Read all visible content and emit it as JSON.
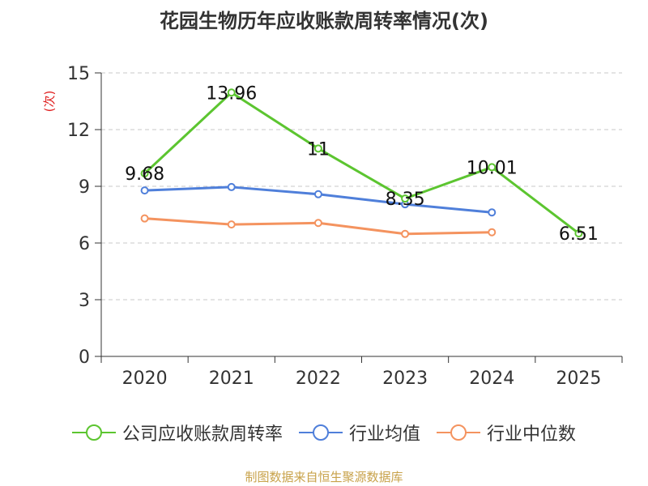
{
  "chart_data": {
    "type": "line",
    "title": "花园生物历年应收账款周转率情况(次)",
    "ylabel": "(次)",
    "xlabel": "",
    "categories": [
      "2020",
      "2021",
      "2022",
      "2023",
      "2024",
      "2025"
    ],
    "ylim": [
      0,
      15
    ],
    "yticks": [
      "0",
      "3",
      "6",
      "9",
      "12",
      "15"
    ],
    "grid": true,
    "legend_position": "bottom",
    "series": [
      {
        "name": "公司应收账款周转率",
        "color": "#5cc530",
        "values": [
          9.68,
          13.96,
          11,
          8.35,
          10.01,
          6.51
        ],
        "labels": [
          "9.68",
          "13.96",
          "11",
          "8.35",
          "10.01",
          "6.51"
        ]
      },
      {
        "name": "行业均值",
        "color": "#4f7fda",
        "values": [
          8.78,
          8.96,
          8.58,
          8.05,
          7.62,
          null
        ]
      },
      {
        "name": "行业中位数",
        "color": "#f4935f",
        "values": [
          7.3,
          6.98,
          7.06,
          6.48,
          6.57,
          null
        ]
      }
    ]
  },
  "source": "制图数据来自恒生聚源数据库"
}
